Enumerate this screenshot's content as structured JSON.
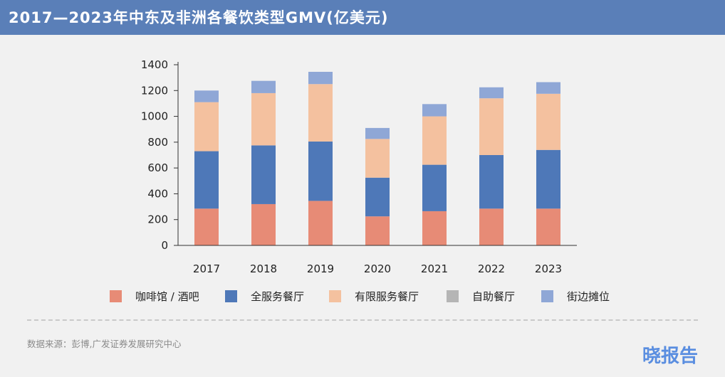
{
  "header": {
    "title": "2017—2023年中东及非洲各餐饮类型GMV(亿美元)"
  },
  "footer": {
    "source": "数据来源：彭博,广发证券发展研究中心",
    "brand": "晓报告"
  },
  "chart_data": {
    "type": "bar",
    "stacked": true,
    "title": "2017—2023年中东及非洲各餐饮类型GMV(亿美元)",
    "categories": [
      "2017",
      "2018",
      "2019",
      "2020",
      "2021",
      "2022",
      "2023"
    ],
    "series": [
      {
        "name": "咖啡馆 / 酒吧",
        "color": "#e78b76",
        "values": [
          285,
          320,
          345,
          225,
          265,
          285,
          285
        ]
      },
      {
        "name": "全服务餐厅",
        "color": "#4e78b8",
        "values": [
          445,
          455,
          460,
          300,
          360,
          415,
          455
        ]
      },
      {
        "name": "有限服务餐厅",
        "color": "#f4c19f",
        "values": [
          380,
          405,
          445,
          300,
          375,
          440,
          435
        ]
      },
      {
        "name": "自助餐厅",
        "color": "#b5b5b5",
        "values": [
          0,
          0,
          0,
          0,
          0,
          0,
          0
        ]
      },
      {
        "name": "街边摊位",
        "color": "#8fa7d6",
        "values": [
          90,
          95,
          95,
          85,
          95,
          85,
          90
        ]
      }
    ],
    "y_ticks": [
      0,
      200,
      400,
      600,
      800,
      1000,
      1200,
      1400
    ],
    "ylim": [
      0,
      1400
    ],
    "xlabel": "",
    "ylabel": "",
    "grid": false,
    "legend_position": "bottom"
  }
}
